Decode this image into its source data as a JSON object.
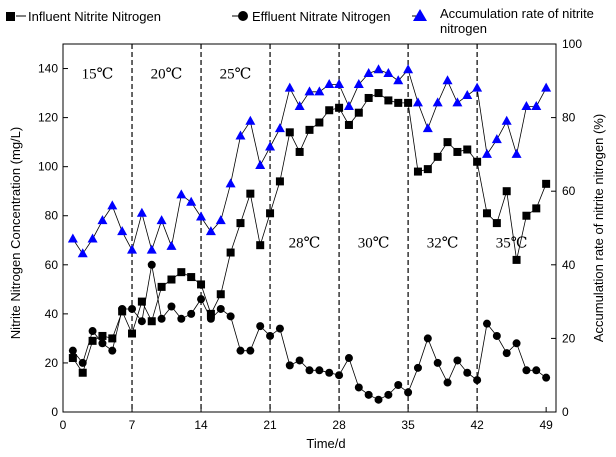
{
  "chart_data": {
    "type": "line",
    "xlabel": "Time/d",
    "ylabel_left": "Nitrite Nitrogen Concentration  (mg/L)",
    "ylabel_right": "Accumulation rate of nitrite nitrogen (%)",
    "x_ticks": [
      0,
      7,
      14,
      21,
      28,
      35,
      42,
      49
    ],
    "xlim": [
      0,
      50
    ],
    "ylim_left": [
      0,
      150
    ],
    "ylim_right": [
      0,
      100
    ],
    "y_ticks_left": [
      0,
      20,
      40,
      60,
      80,
      100,
      120,
      140
    ],
    "y_ticks_right": [
      0,
      20,
      40,
      60,
      80,
      100
    ],
    "phase_boundaries": [
      7,
      14,
      21,
      28,
      35,
      42
    ],
    "phase_labels": [
      {
        "text": "15℃",
        "x": 3.5,
        "y": 138
      },
      {
        "text": "20℃",
        "x": 10.5,
        "y": 138
      },
      {
        "text": "25℃",
        "x": 17.5,
        "y": 138
      },
      {
        "text": "28℃",
        "x": 24.5,
        "y": 69
      },
      {
        "text": "30℃",
        "x": 31.5,
        "y": 69
      },
      {
        "text": "32℃",
        "x": 38.5,
        "y": 69
      },
      {
        "text": "35℃",
        "x": 45.5,
        "y": 69
      }
    ],
    "legend": [
      {
        "label": "Influent Nitrite Nitrogen",
        "marker": "square"
      },
      {
        "label": "Effluent Nitrate Nitrogen",
        "marker": "circle"
      },
      {
        "label": "Accumulation rate of nitrite nitrogen",
        "marker": "triangle"
      }
    ],
    "series": [
      {
        "name": "Influent Nitrite Nitrogen",
        "marker": "square",
        "color": "#000000",
        "axis": "left",
        "x": [
          1,
          2,
          3,
          4,
          5,
          6,
          7,
          8,
          9,
          10,
          11,
          12,
          13,
          14,
          15,
          16,
          17,
          18,
          19,
          20,
          21,
          22,
          23,
          24,
          25,
          26,
          27,
          28,
          29,
          30,
          31,
          32,
          33,
          34,
          35,
          36,
          37,
          38,
          39,
          40,
          41,
          42,
          43,
          44,
          45,
          46,
          47,
          48,
          49
        ],
        "y": [
          22,
          16,
          29,
          31,
          30,
          41,
          32,
          45,
          37,
          51,
          54,
          57,
          55,
          52,
          40,
          48,
          65,
          77,
          89,
          68,
          81,
          94,
          114,
          106,
          115,
          118,
          123,
          124,
          117,
          122,
          128,
          130,
          127,
          126,
          126,
          98,
          99,
          104,
          110,
          106,
          107,
          102,
          81,
          77,
          90,
          62,
          80,
          83,
          93
        ]
      },
      {
        "name": "Effluent Nitrate Nitrogen",
        "marker": "circle",
        "color": "#000000",
        "axis": "left",
        "x": [
          1,
          2,
          3,
          4,
          5,
          6,
          7,
          8,
          9,
          10,
          11,
          12,
          13,
          14,
          15,
          16,
          17,
          18,
          19,
          20,
          21,
          22,
          23,
          24,
          25,
          26,
          27,
          28,
          29,
          30,
          31,
          32,
          33,
          34,
          35,
          36,
          37,
          38,
          39,
          40,
          41,
          42,
          43,
          44,
          45,
          46,
          47,
          48,
          49
        ],
        "y": [
          25,
          20,
          33,
          28,
          25,
          42,
          42,
          37,
          60,
          38,
          43,
          38,
          40,
          46,
          38,
          42,
          39,
          25,
          25,
          35,
          31,
          34,
          19,
          21,
          17,
          17,
          16,
          15,
          22,
          10,
          7,
          5,
          7,
          11,
          8,
          18,
          30,
          20,
          12,
          21,
          16,
          13,
          36,
          31,
          24,
          28,
          17,
          17,
          14
        ]
      },
      {
        "name": "Accumulation rate of nitrite nitrogen",
        "marker": "triangle",
        "color": "#0000ff",
        "axis": "right",
        "x": [
          1,
          2,
          3,
          4,
          5,
          6,
          7,
          8,
          9,
          10,
          11,
          12,
          13,
          14,
          15,
          16,
          17,
          18,
          19,
          20,
          21,
          22,
          23,
          24,
          25,
          26,
          27,
          28,
          29,
          30,
          31,
          32,
          33,
          34,
          35,
          36,
          37,
          38,
          39,
          40,
          41,
          42,
          43,
          44,
          45,
          46,
          47,
          48,
          49
        ],
        "y": [
          47,
          43,
          47,
          52,
          56,
          49,
          44,
          54,
          44,
          52,
          45,
          59,
          57,
          53,
          49,
          52,
          62,
          75,
          79,
          67,
          72,
          77,
          88,
          83,
          87,
          87,
          89,
          89,
          83,
          89,
          92,
          93,
          92,
          90,
          93,
          84,
          77,
          84,
          90,
          84,
          86,
          88,
          70,
          74,
          79,
          70,
          83,
          83,
          88
        ]
      }
    ]
  }
}
